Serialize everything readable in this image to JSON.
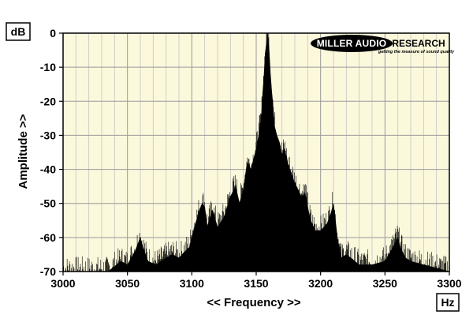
{
  "chart_data": {
    "type": "area",
    "title": "",
    "xlabel": "<< Frequency >>",
    "ylabel": "Amplitude >>",
    "x_unit": "Hz",
    "y_unit": "dB",
    "xlim": [
      3000,
      3300
    ],
    "ylim": [
      -70,
      0
    ],
    "x_ticks": [
      3000,
      3050,
      3100,
      3150,
      3200,
      3250,
      3300
    ],
    "x_tick_labels": [
      "3000",
      "3050",
      "3100",
      "3150",
      "3200",
      "3250",
      "3300"
    ],
    "y_ticks": [
      0,
      -10,
      -20,
      -30,
      -40,
      -50,
      -60,
      -70
    ],
    "y_tick_labels": [
      "0",
      "-10",
      "-20",
      "-30",
      "-40",
      "-50",
      "-60",
      "-70"
    ],
    "grid": true,
    "background_color": "#fbf8dc",
    "series_color": "#000000",
    "series": [
      {
        "name": "",
        "x": [
          3000,
          3020,
          3035,
          3045,
          3050,
          3056,
          3058,
          3060,
          3062,
          3066,
          3072,
          3080,
          3085,
          3090,
          3095,
          3098,
          3102,
          3106,
          3108,
          3110,
          3112,
          3116,
          3120,
          3125,
          3130,
          3134,
          3137,
          3140,
          3143,
          3146,
          3148,
          3150,
          3152,
          3154,
          3155,
          3156,
          3157,
          3158,
          3159,
          3160,
          3161,
          3162,
          3163,
          3164,
          3166,
          3168,
          3170,
          3172,
          3175,
          3180,
          3185,
          3188,
          3192,
          3196,
          3200,
          3205,
          3208,
          3210,
          3213,
          3216,
          3220,
          3230,
          3240,
          3250,
          3256,
          3260,
          3262,
          3266,
          3270,
          3280,
          3290,
          3300
        ],
        "values": [
          -70,
          -70,
          -70,
          -67,
          -68,
          -64,
          -62,
          -60,
          -63,
          -67,
          -68,
          -66,
          -65,
          -66,
          -64,
          -63,
          -57,
          -52,
          -50,
          -51,
          -57,
          -52,
          -57,
          -54,
          -48,
          -45,
          -50,
          -46,
          -38,
          -40,
          -37,
          -34,
          -30,
          -25,
          -18,
          -13,
          -6,
          -3,
          0,
          -5,
          -12,
          -17,
          -21,
          -27,
          -30,
          -32,
          -36,
          -34,
          -39,
          -44,
          -48,
          -47,
          -55,
          -58,
          -58,
          -56,
          -53,
          -50,
          -60,
          -66,
          -65,
          -68,
          -68,
          -67,
          -63,
          -60,
          -63,
          -66,
          -67,
          -68,
          -69,
          -70
        ]
      }
    ]
  },
  "logo": {
    "brand_light": "MILLER AUDIO",
    "brand_dark": "RESEARCH",
    "tagline": "getting the measure of sound quality"
  }
}
